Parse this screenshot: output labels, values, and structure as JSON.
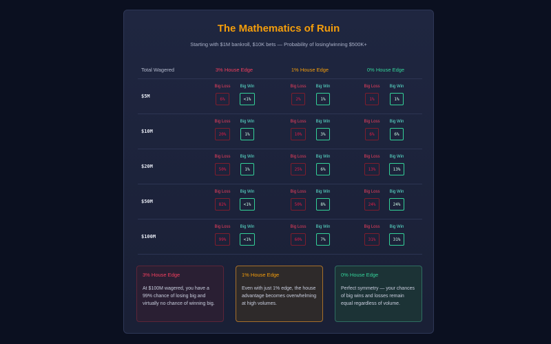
{
  "title": "The Mathematics of Ruin",
  "subtitle": "Starting with $1M bankroll, $10K bets — Probability of losing/winning $500K+",
  "chart_data": {
    "type": "table",
    "row_header": "Total Wagered",
    "columns": [
      {
        "name": "3% House Edge",
        "color": "#f43f5e"
      },
      {
        "name": "1% House Edge",
        "color": "#f59e0b"
      },
      {
        "name": "0% House Edge",
        "color": "#34d399"
      }
    ],
    "sub_labels": {
      "loss": "Big Loss",
      "win": "Big Win"
    },
    "rows": [
      {
        "label": "$5M",
        "values": [
          [
            "6%",
            "<1%"
          ],
          [
            "2%",
            "1%"
          ],
          [
            "1%",
            "1%"
          ]
        ]
      },
      {
        "label": "$10M",
        "values": [
          [
            "20%",
            "1%"
          ],
          [
            "10%",
            "3%"
          ],
          [
            "6%",
            "6%"
          ]
        ]
      },
      {
        "label": "$20M",
        "values": [
          [
            "50%",
            "1%"
          ],
          [
            "25%",
            "6%"
          ],
          [
            "13%",
            "13%"
          ]
        ]
      },
      {
        "label": "$50M",
        "values": [
          [
            "82%",
            "<1%"
          ],
          [
            "50%",
            "8%"
          ],
          [
            "24%",
            "24%"
          ]
        ]
      },
      {
        "label": "$100M",
        "values": [
          [
            "99%",
            "<1%"
          ],
          [
            "60%",
            "7%"
          ],
          [
            "31%",
            "31%"
          ]
        ]
      }
    ]
  },
  "cards": [
    {
      "title": "3% House Edge",
      "text": "At $100M wagered, you have a 99% chance of losing big and virtually no chance of winning big."
    },
    {
      "title": "1% House Edge",
      "text": "Even with just 1% edge, the house advantage becomes overwhelming at high volumes."
    },
    {
      "title": "0% House Edge",
      "text": "Perfect symmetry — your chances of big wins and losses remain equal regardless of volume."
    }
  ]
}
